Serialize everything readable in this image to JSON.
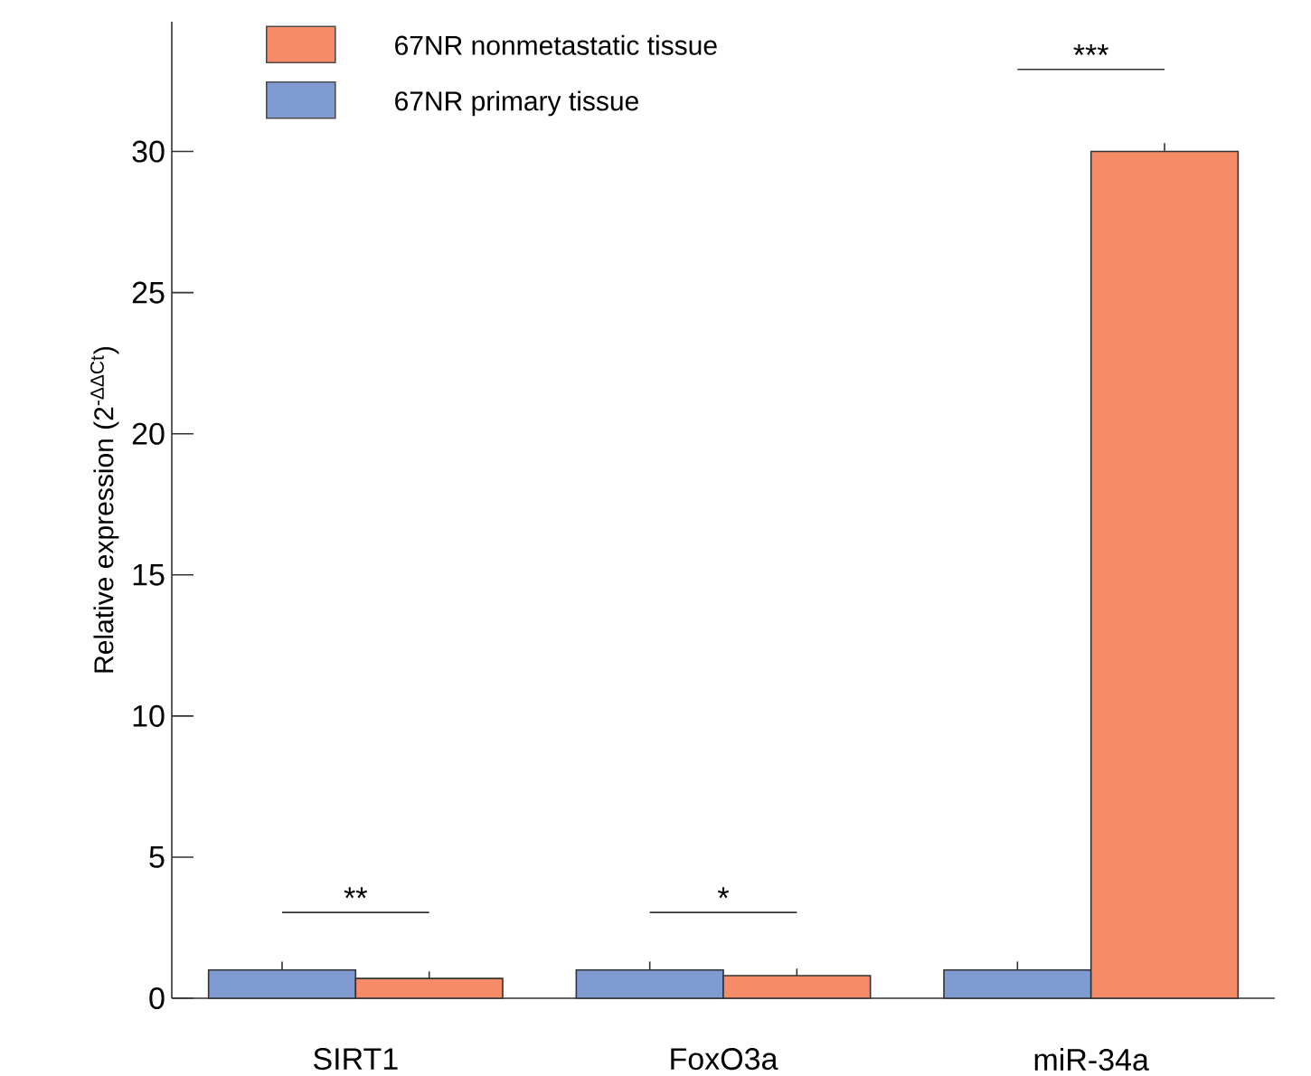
{
  "chart_data": {
    "type": "bar",
    "ylabel": "Relative expression (2$^{-ΔΔCt}$)",
    "categories": [
      "SIRT1",
      "FoxO3a",
      "miR-34a"
    ],
    "series": [
      {
        "name": "67NR primary tissue",
        "color": "#7f9bd1",
        "values": [
          1.0,
          1.0,
          1.0
        ],
        "errors": [
          [
            1.0,
            1.3
          ],
          [
            1.0,
            1.3
          ],
          [
            1.0,
            1.3
          ]
        ]
      },
      {
        "name": "67NR nonmetastatic tissue",
        "color": "#f68c67",
        "values": [
          0.7,
          0.8,
          30.0
        ],
        "errors": [
          [
            0.7,
            0.95
          ],
          [
            0.8,
            1.05
          ],
          [
            30.0,
            30.3
          ]
        ]
      }
    ],
    "ylim": [
      0,
      34.6
    ],
    "yticks": [
      0,
      5,
      10,
      15,
      20,
      25,
      30
    ],
    "legend": "top left",
    "annotations": [
      "**",
      "*",
      "***"
    ]
  }
}
